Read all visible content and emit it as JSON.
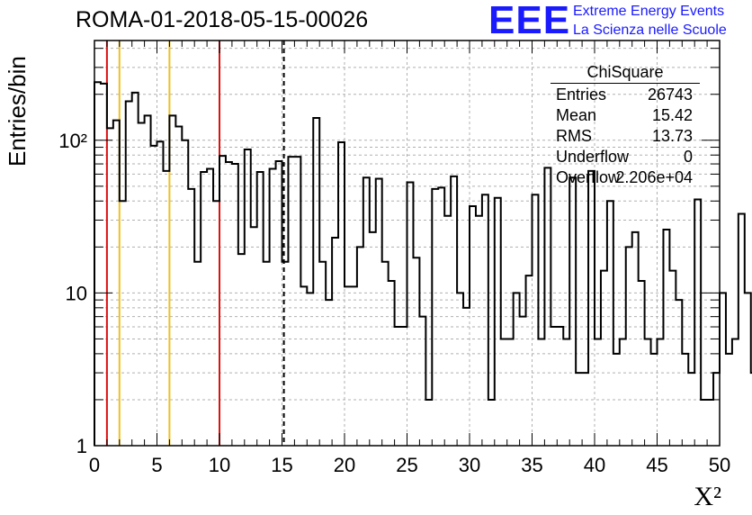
{
  "header": {
    "title": "ROMA-01-2018-05-15-00026",
    "logo_text": "EEE",
    "logo_line1": "Extreme Energy Events",
    "logo_line2": "La Scienza nelle Scuole"
  },
  "stats_box": {
    "name": "ChiSquare",
    "rows": [
      {
        "label": "Entries",
        "value": "26743"
      },
      {
        "label": "Mean",
        "value": "15.42"
      },
      {
        "label": "RMS",
        "value": "13.73"
      },
      {
        "label": "Underflow",
        "value": "0"
      },
      {
        "label": "Overflow",
        "value": "2.206e+04"
      }
    ]
  },
  "colors": {
    "histogram": "#000000",
    "red_lines": "#dd1111",
    "yellow_lines": "#f0c020",
    "dashed_line": "#000000",
    "grid": "#b0b0b0",
    "logo": "#1a1aff"
  },
  "chart_data": {
    "type": "histogram",
    "xlabel": "X²",
    "ylabel": "Entries/bin",
    "xlim": [
      0,
      50
    ],
    "ylim": [
      1,
      450
    ],
    "yscale": "log",
    "grid": true,
    "bin_width": 0.5,
    "x_ticks": [
      "0",
      "5",
      "10",
      "15",
      "20",
      "25",
      "30",
      "35",
      "40",
      "45",
      "50"
    ],
    "y_ticks": [
      {
        "value": 1,
        "label": "1"
      },
      {
        "value": 10,
        "label": "10"
      },
      {
        "value": 100,
        "label": "10²"
      }
    ],
    "values": [
      240,
      235,
      120,
      135,
      40,
      180,
      205,
      130,
      145,
      92,
      98,
      63,
      145,
      123,
      100,
      48,
      16,
      62,
      65,
      40,
      79,
      72,
      70,
      18,
      87,
      27,
      62,
      16,
      65,
      73,
      16,
      78,
      78,
      11,
      10,
      140,
      16,
      9,
      23,
      97,
      11,
      11,
      20,
      57,
      25,
      56,
      16,
      12,
      6,
      6,
      53,
      17,
      7,
      2,
      48,
      49,
      32,
      58,
      10,
      8,
      37,
      32,
      44,
      2,
      42,
      5,
      5,
      10,
      7,
      13,
      44,
      5,
      66,
      6,
      6,
      5,
      57,
      3,
      3,
      63,
      5,
      14,
      40,
      4,
      5,
      20,
      25,
      12,
      5,
      4,
      5,
      26,
      14,
      9,
      4,
      3,
      41,
      2,
      2,
      3,
      10,
      4,
      5,
      33,
      10,
      3,
      2,
      49,
      49
    ],
    "vertical_lines": [
      {
        "x": 1,
        "color": "red",
        "style": "solid"
      },
      {
        "x": 2,
        "color": "yellow",
        "style": "solid"
      },
      {
        "x": 6,
        "color": "yellow",
        "style": "solid"
      },
      {
        "x": 10,
        "color": "red",
        "style": "solid"
      },
      {
        "x": 15.15,
        "color": "black",
        "style": "dashed"
      }
    ]
  }
}
